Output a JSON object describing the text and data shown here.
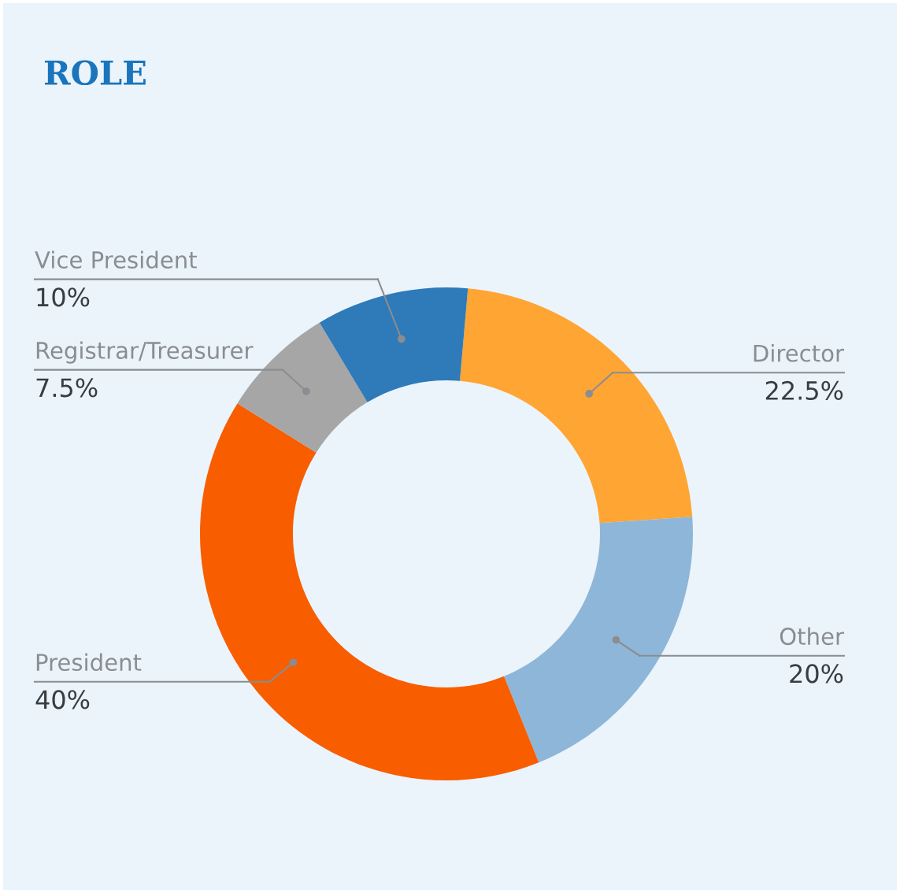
{
  "chart_data": {
    "type": "donut",
    "title": "ROLE",
    "categories": [
      "Director",
      "Other",
      "President",
      "Registrar/Treasurer",
      "Vice President"
    ],
    "values": [
      22.5,
      20,
      40,
      7.5,
      10
    ],
    "value_labels": [
      "22.5%",
      "20%",
      "40%",
      "7.5%",
      "10%"
    ],
    "colors": [
      "#ffa533",
      "#8eb6d8",
      "#f85d00",
      "#a6a6a6",
      "#2f7ab8"
    ],
    "legend": false
  }
}
